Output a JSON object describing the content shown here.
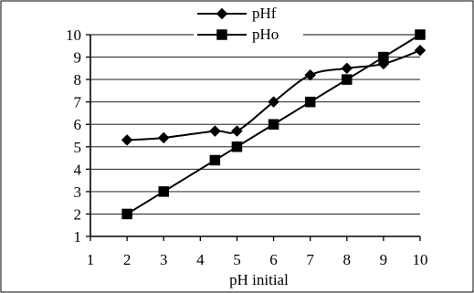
{
  "chart_data": {
    "type": "line",
    "title": "",
    "xlabel": "pH initial",
    "ylabel": "",
    "xlim": [
      1,
      10
    ],
    "ylim": [
      1,
      10
    ],
    "xticks": [
      1,
      2,
      3,
      4,
      5,
      6,
      7,
      8,
      9,
      10
    ],
    "yticks": [
      1,
      2,
      3,
      4,
      5,
      6,
      7,
      8,
      9,
      10
    ],
    "grid": "horizontal",
    "legend_position": "top-center",
    "series": [
      {
        "name": "pHf",
        "marker": "diamond",
        "color": "#000000",
        "points": [
          [
            2,
            5.3
          ],
          [
            3,
            5.4
          ],
          [
            4.4,
            5.7
          ],
          [
            5,
            5.7
          ],
          [
            6,
            7.0
          ],
          [
            7,
            8.2
          ],
          [
            8,
            8.5
          ],
          [
            9,
            8.7
          ],
          [
            10,
            9.3
          ]
        ]
      },
      {
        "name": "pHo",
        "marker": "square",
        "color": "#000000",
        "points": [
          [
            2,
            2.0
          ],
          [
            3,
            3.0
          ],
          [
            4.4,
            4.4
          ],
          [
            5,
            5.0
          ],
          [
            6,
            6.0
          ],
          [
            7,
            7.0
          ],
          [
            8,
            8.0
          ],
          [
            9,
            9.0
          ],
          [
            10,
            10.0
          ]
        ]
      }
    ]
  }
}
